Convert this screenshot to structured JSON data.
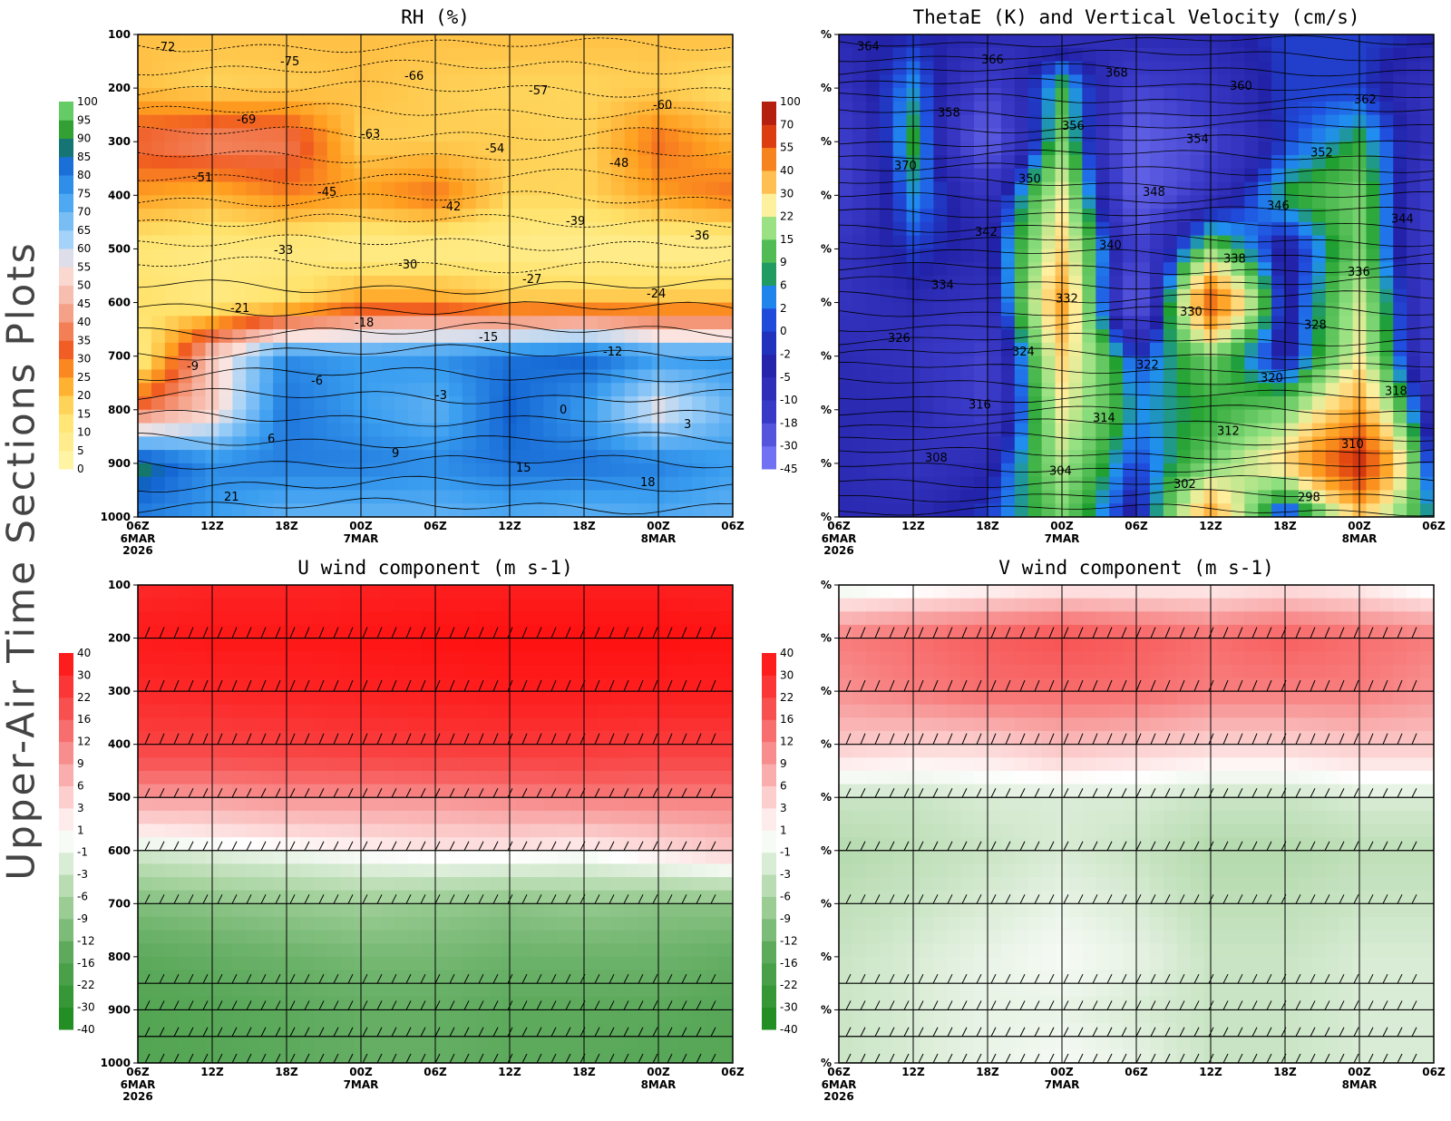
{
  "page": {
    "vertical_title": "Upper-Air Time Sections Plots"
  },
  "time_axis": {
    "ticks": [
      "06Z",
      "12Z",
      "18Z",
      "00Z",
      "06Z",
      "12Z",
      "18Z",
      "00Z",
      "06Z"
    ],
    "date_labels": [
      {
        "index": 0,
        "lines": [
          "6MAR",
          "2026"
        ]
      },
      {
        "index": 3,
        "lines": [
          "7MAR"
        ]
      },
      {
        "index": 7,
        "lines": [
          "8MAR"
        ]
      }
    ]
  },
  "pressure_axis": {
    "levels_hpa": [
      100,
      200,
      300,
      400,
      500,
      600,
      700,
      800,
      900,
      1000
    ],
    "right_panel_tick_label": "%"
  },
  "colors": {
    "rh_dry": "#fff5a8",
    "rh_moist": "#1e8fe8",
    "rh_saturated": "#1a8a1a",
    "u_positive": "#ff2020",
    "u_negative": "#2e9e2e",
    "theta_neg": "#2020c8",
    "theta_pos": "#e05010"
  },
  "chart_data": [
    {
      "id": "rh",
      "type": "heatmap",
      "title": "RH (%)",
      "x": [
        "06Z 6MAR",
        "12Z",
        "18Z",
        "00Z 7MAR",
        "06Z",
        "12Z",
        "18Z",
        "00Z 8MAR",
        "06Z"
      ],
      "y_levels_hpa": [
        100,
        200,
        300,
        400,
        500,
        600,
        700,
        800,
        900,
        1000
      ],
      "values": [
        [
          20,
          20,
          20,
          20,
          20,
          20,
          20,
          20,
          20
        ],
        [
          20,
          17,
          18,
          20,
          18,
          17,
          17,
          18,
          15
        ],
        [
          35,
          40,
          38,
          18,
          18,
          18,
          17,
          30,
          22
        ],
        [
          25,
          22,
          28,
          25,
          30,
          17,
          17,
          25,
          30
        ],
        [
          12,
          10,
          10,
          8,
          8,
          8,
          7,
          7,
          7
        ],
        [
          15,
          10,
          15,
          25,
          25,
          20,
          20,
          20,
          20
        ],
        [
          8,
          50,
          78,
          75,
          77,
          82,
          85,
          76,
          76
        ],
        [
          35,
          50,
          82,
          75,
          70,
          85,
          75,
          55,
          70
        ],
        [
          90,
          78,
          80,
          80,
          78,
          82,
          82,
          80,
          75
        ],
        [
          80,
          75,
          70,
          70,
          70,
          72,
          70,
          72,
          70
        ]
      ],
      "colorbar": [
        0,
        5,
        10,
        15,
        20,
        25,
        30,
        35,
        40,
        45,
        50,
        55,
        60,
        65,
        70,
        75,
        80,
        85,
        90,
        95,
        100
      ],
      "contours": {
        "temperature_c": [
          "-72",
          "-75",
          "-66",
          "-57",
          "-60",
          "-69",
          "-63",
          "-54",
          "-48",
          "-51",
          "-45",
          "-42",
          "-39",
          "-36",
          "-33",
          "-30",
          "-27",
          "-24",
          "-21",
          "-18",
          "-15",
          "-12",
          "-9",
          "-6",
          "-3",
          "0",
          "3",
          "6",
          "9",
          "15",
          "18",
          "21"
        ]
      }
    },
    {
      "id": "thetae",
      "type": "heatmap",
      "title": "ThetaE (K) and Vertical Velocity (cm/s)",
      "x": [
        "06Z 6MAR",
        "12Z",
        "18Z",
        "00Z 7MAR",
        "06Z",
        "12Z",
        "18Z",
        "00Z 8MAR",
        "06Z"
      ],
      "y_levels_hpa": [
        100,
        200,
        300,
        400,
        500,
        600,
        700,
        800,
        900,
        1000
      ],
      "values": [
        [
          -5,
          -2,
          -5,
          -10,
          -5,
          -5,
          0,
          0,
          -2
        ],
        [
          -10,
          5,
          -18,
          10,
          -18,
          -10,
          0,
          0,
          -10
        ],
        [
          -18,
          9,
          -30,
          15,
          -30,
          -18,
          0,
          9,
          -10
        ],
        [
          -18,
          5,
          -10,
          25,
          -30,
          -10,
          9,
          15,
          -18
        ],
        [
          -10,
          0,
          -5,
          30,
          -18,
          15,
          -5,
          15,
          -18
        ],
        [
          -10,
          -5,
          -10,
          40,
          -30,
          55,
          -5,
          22,
          -18
        ],
        [
          -5,
          -10,
          -18,
          30,
          0,
          15,
          -5,
          25,
          -18
        ],
        [
          -5,
          -5,
          -18,
          25,
          5,
          9,
          15,
          40,
          -10
        ],
        [
          -5,
          -10,
          -5,
          20,
          0,
          15,
          30,
          70,
          -5
        ],
        [
          -5,
          -5,
          0,
          15,
          -5,
          40,
          -5,
          30,
          5
        ]
      ],
      "colorbar": [
        -45,
        -30,
        -18,
        -10,
        -5,
        -2,
        0,
        2,
        6,
        9,
        15,
        22,
        30,
        40,
        55,
        70,
        100
      ],
      "contours": {
        "theta_e_k": [
          "364",
          "366",
          "368",
          "360",
          "362",
          "358",
          "356",
          "354",
          "352",
          "370",
          "350",
          "348",
          "346",
          "344",
          "342",
          "340",
          "338",
          "336",
          "334",
          "332",
          "330",
          "328",
          "326",
          "324",
          "322",
          "320",
          "318",
          "316",
          "314",
          "312",
          "310",
          "308",
          "304",
          "302",
          "298"
        ]
      }
    },
    {
      "id": "uwind",
      "type": "heatmap",
      "title": "U wind component (m s-1)",
      "x": [
        "06Z 6MAR",
        "12Z",
        "18Z",
        "00Z 7MAR",
        "06Z",
        "12Z",
        "18Z",
        "00Z 8MAR",
        "06Z"
      ],
      "y_levels_hpa": [
        100,
        200,
        300,
        400,
        500,
        600,
        700,
        800,
        900,
        1000
      ],
      "values": [
        [
          30,
          32,
          32,
          33,
          34,
          34,
          34,
          34,
          33
        ],
        [
          36,
          37,
          37,
          38,
          39,
          40,
          40,
          40,
          39
        ],
        [
          30,
          31,
          32,
          33,
          34,
          35,
          35,
          34,
          34
        ],
        [
          22,
          22,
          23,
          24,
          25,
          25,
          25,
          24,
          24
        ],
        [
          9,
          9,
          10,
          10,
          10,
          11,
          12,
          12,
          12
        ],
        [
          -2,
          -1,
          0,
          1,
          2,
          2,
          1,
          3,
          5
        ],
        [
          -10,
          -9,
          -8,
          -7,
          -8,
          -9,
          -8,
          -9,
          -9
        ],
        [
          -14,
          -13,
          -12,
          -11,
          -11,
          -12,
          -12,
          -12,
          -13
        ],
        [
          -16,
          -15,
          -14,
          -13,
          -13,
          -14,
          -14,
          -14,
          -15
        ],
        [
          -16,
          -15,
          -14,
          -13,
          -13,
          -14,
          -14,
          -15,
          -15
        ]
      ],
      "colorbar": [
        -40,
        -30,
        -22,
        -16,
        -12,
        -9,
        -6,
        -3,
        -1,
        1,
        3,
        6,
        9,
        12,
        16,
        22,
        30,
        40
      ]
    },
    {
      "id": "vwind",
      "type": "heatmap",
      "title": "V wind component (m s-1)",
      "x": [
        "06Z 6MAR",
        "12Z",
        "18Z",
        "00Z 7MAR",
        "06Z",
        "12Z",
        "18Z",
        "00Z 8MAR",
        "06Z"
      ],
      "y_levels_hpa": [
        100,
        200,
        300,
        400,
        500,
        600,
        700,
        800,
        900,
        1000
      ],
      "values": [
        [
          -2,
          -1,
          0,
          1,
          1,
          1,
          2,
          1,
          -1
        ],
        [
          12,
          14,
          16,
          18,
          16,
          14,
          16,
          14,
          12
        ],
        [
          10,
          12,
          14,
          14,
          14,
          12,
          12,
          12,
          10
        ],
        [
          5,
          4,
          4,
          6,
          5,
          4,
          4,
          5,
          5
        ],
        [
          -3,
          -3,
          -2,
          -2,
          -2,
          -3,
          -3,
          -2,
          -2
        ],
        [
          -5,
          -4,
          -3,
          -2,
          -3,
          -5,
          -5,
          -4,
          -4
        ],
        [
          -4,
          -3,
          -2,
          -1,
          -2,
          -4,
          -4,
          -3,
          -3
        ],
        [
          -3,
          -2,
          -1,
          0,
          -1,
          -3,
          -3,
          -2,
          -2
        ],
        [
          -3,
          -2,
          -1,
          -1,
          -2,
          -3,
          -3,
          -2,
          -2
        ],
        [
          -3,
          -2,
          -1,
          0,
          -1,
          -3,
          -3,
          -2,
          -2
        ]
      ],
      "colorbar": [
        -40,
        -30,
        -22,
        -16,
        -12,
        -9,
        -6,
        -3,
        -1,
        1,
        3,
        6,
        9,
        12,
        16,
        22,
        30,
        40
      ]
    }
  ]
}
